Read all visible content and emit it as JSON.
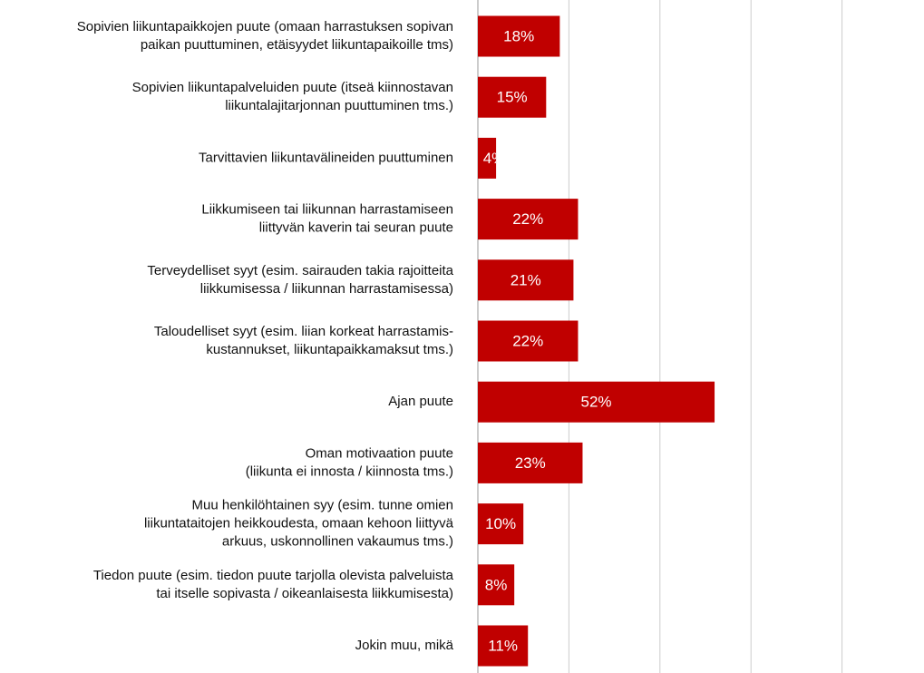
{
  "chart_data": {
    "type": "bar",
    "orientation": "horizontal",
    "categories": [
      [
        "Sopivien liikuntapaikkojen puute (omaan harrastuksen sopivan",
        "paikan puuttuminen, etäisyydet liikuntapaikoille tms)"
      ],
      [
        "Sopivien liikuntapalveluiden puute (itseä kiinnostavan",
        "liikuntalajitarjonnan puuttuminen tms.)"
      ],
      [
        "Tarvittavien liikuntavälineiden puuttuminen"
      ],
      [
        "Liikkumiseen tai liikunnan harrastamiseen",
        "liittyvän kaverin tai seuran puute"
      ],
      [
        "Terveydelliset syyt (esim. sairauden takia rajoitteita",
        "liikkumisessa / liikunnan harrastamisessa)"
      ],
      [
        "Taloudelliset syyt (esim. liian korkeat harrastamis-",
        "kustannukset, liikuntapaikkamaksut tms.)"
      ],
      [
        "Ajan puute"
      ],
      [
        "Oman motivaation puute",
        "(liikunta ei innosta / kiinnosta tms.)"
      ],
      [
        "Muu henkilöhtainen syy (esim. tunne omien",
        "liikuntataitojen heikkoudesta, omaan kehoon liittyvä",
        "arkuus, uskonnollinen vakaumus tms.)"
      ],
      [
        "Tiedon puute (esim. tiedon puute tarjolla olevista palveluista",
        "tai itselle sopivasta / oikeanlaisesta liikkumisesta)"
      ],
      [
        "Jokin muu, mikä"
      ]
    ],
    "values": [
      18,
      15,
      4,
      22,
      21,
      22,
      52,
      23,
      10,
      8,
      11
    ],
    "value_labels": [
      "18%",
      "15%",
      "4%",
      "22%",
      "21%",
      "22%",
      "52%",
      "23%",
      "10%",
      "8%",
      "11%"
    ],
    "color": "#c00000",
    "xlim": [
      0,
      100
    ],
    "xticks": [
      0,
      20,
      40,
      60,
      80
    ],
    "grid": true
  }
}
